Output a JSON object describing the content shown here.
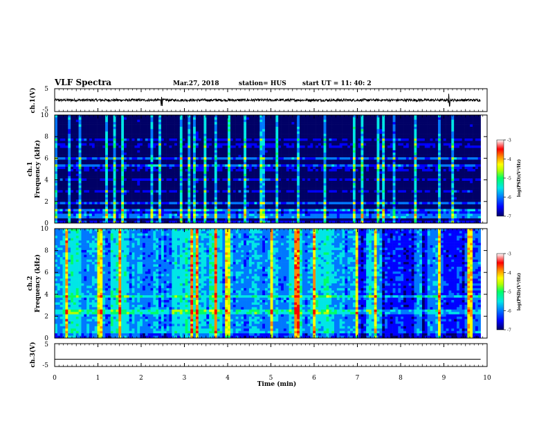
{
  "header": {
    "title": "VLF Spectra",
    "date": "Mar.27, 2018",
    "station": "station= HUS",
    "start_time": "start  UT =   11: 40: 2"
  },
  "colorbar": {
    "label": "log(PSD)(V²/Hz)",
    "ticks": [
      "-3",
      "-4",
      "-5",
      "-6",
      "-7"
    ],
    "colors": [
      "#000066",
      "#0000ff",
      "#0078ff",
      "#00e6e6",
      "#00ff66",
      "#b4ff00",
      "#ffff00",
      "#ff8c00",
      "#ff0000",
      "#ffffff"
    ]
  },
  "chart_data": [
    {
      "type": "line",
      "name": "ch1-waveform",
      "ylabel": "ch.1(V)",
      "ylim": [
        -5,
        5
      ],
      "yticks": [
        "5",
        "-5"
      ],
      "xlim": [
        0,
        9.85
      ],
      "level": 0,
      "spike_times": [
        2.47,
        9.12
      ]
    },
    {
      "type": "heatmap",
      "name": "ch1-spectrogram",
      "ylabel_top": "ch.1",
      "ylabel": "Frequency  (kHz)",
      "ylim": [
        0,
        10
      ],
      "yticks": [
        "10",
        "8",
        "6",
        "4",
        "2",
        "0"
      ],
      "xlim": [
        0,
        9.85
      ],
      "background_log_psd": -6.5,
      "dark_bands_khz": [
        [
          0.3,
          0.45
        ],
        [
          1.4,
          1.75
        ],
        [
          2.05,
          2.55
        ],
        [
          2.7,
          3.05
        ],
        [
          3.15,
          4.8
        ],
        [
          5.4,
          5.85
        ],
        [
          6.0,
          6.9
        ],
        [
          7.5,
          7.95
        ],
        [
          8.1,
          9.9
        ]
      ],
      "bright_lines_khz": [
        0.5,
        0.7,
        1.2,
        1.8,
        3.0,
        4.1,
        5.3,
        5.9,
        7.8
      ],
      "sferic_times_min": [
        0.05,
        0.35,
        0.6,
        1.2,
        1.38,
        1.55,
        2.23,
        2.44,
        2.9,
        3.1,
        3.22,
        3.5,
        3.72,
        4.02,
        4.05,
        4.42,
        4.8,
        5.15,
        5.62,
        6.27,
        6.95,
        7.1,
        7.5,
        7.62,
        7.85,
        8.35,
        8.9,
        9.2
      ]
    },
    {
      "type": "heatmap",
      "name": "ch2-spectrogram",
      "ylabel_top": "ch.2",
      "ylabel": "Frequency  (kHz)",
      "ylim": [
        0,
        10
      ],
      "yticks": [
        "10",
        "8",
        "6",
        "4",
        "2",
        "0"
      ],
      "xlim": [
        0,
        9.85
      ],
      "background_log_psd": -5.7,
      "bright_regions_min": [
        [
          0.2,
          0.6
        ],
        [
          1.3,
          1.7
        ],
        [
          2.7,
          3.5
        ],
        [
          3.6,
          3.9
        ],
        [
          5.4,
          5.7
        ],
        [
          5.9,
          6.4
        ],
        [
          7.2,
          7.4
        ],
        [
          8.3,
          8.5
        ]
      ],
      "dark_regions_min": [
        [
          7.0,
          7.2
        ],
        [
          7.6,
          8.6
        ],
        [
          9.0,
          9.5
        ]
      ],
      "sferic_times_min": [
        0.3,
        1.05,
        1.5,
        3.15,
        3.3,
        3.7,
        4.0,
        5.0,
        5.6,
        6.0,
        7.0,
        7.4,
        8.9,
        9.6
      ],
      "bright_lines_khz": [
        3.8,
        2.4,
        0.5
      ]
    },
    {
      "type": "line",
      "name": "ch3-waveform",
      "ylabel": "ch.3(V)",
      "ylim": [
        -5,
        5
      ],
      "yticks": [
        "5",
        "-5"
      ],
      "xlim": [
        0,
        9.85
      ],
      "level": -1.8
    }
  ],
  "xaxis": {
    "label": "Time  (min)",
    "ticks": [
      "0",
      "1",
      "2",
      "3",
      "4",
      "5",
      "6",
      "7",
      "8",
      "9",
      "10"
    ],
    "xlim": [
      0,
      10
    ]
  }
}
